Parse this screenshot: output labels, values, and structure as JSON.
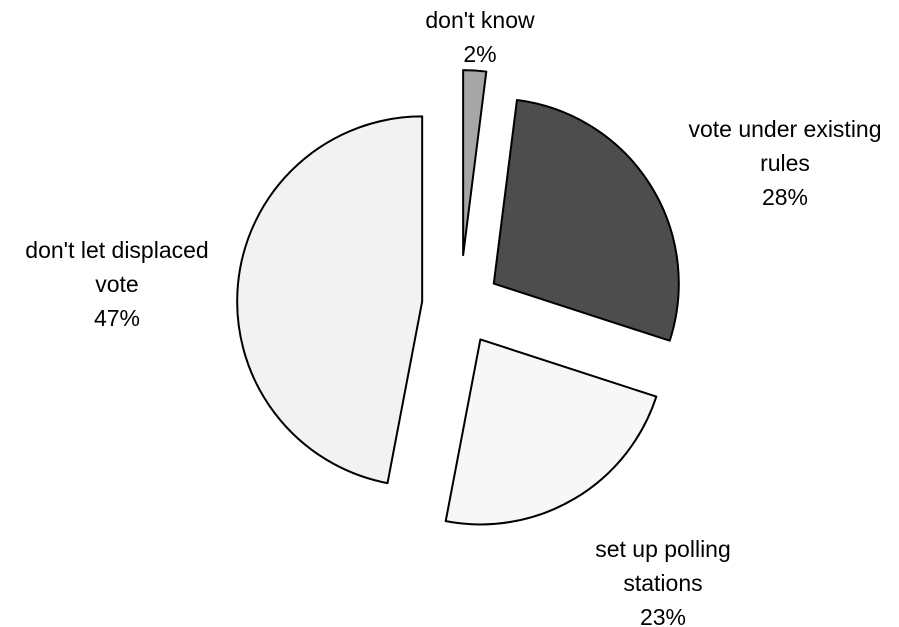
{
  "chart_data": {
    "type": "pie",
    "title": "",
    "slices": [
      {
        "label_lines": [
          "don't know"
        ],
        "value": 2,
        "value_label": "2%",
        "color": "#a6a6a6"
      },
      {
        "label_lines": [
          "vote under existing",
          "rules"
        ],
        "value": 28,
        "value_label": "28%",
        "color": "#4d4d4d"
      },
      {
        "label_lines": [
          "set up polling",
          "stations"
        ],
        "value": 23,
        "value_label": "23%",
        "color": "#f7f7f7"
      },
      {
        "label_lines": [
          "don't let displaced",
          "vote"
        ],
        "value": 47,
        "value_label": "47%",
        "color": "#f2f2f2"
      }
    ],
    "start_angle_deg": 0,
    "direction": "clockwise",
    "exploded": true,
    "legend": "none"
  }
}
